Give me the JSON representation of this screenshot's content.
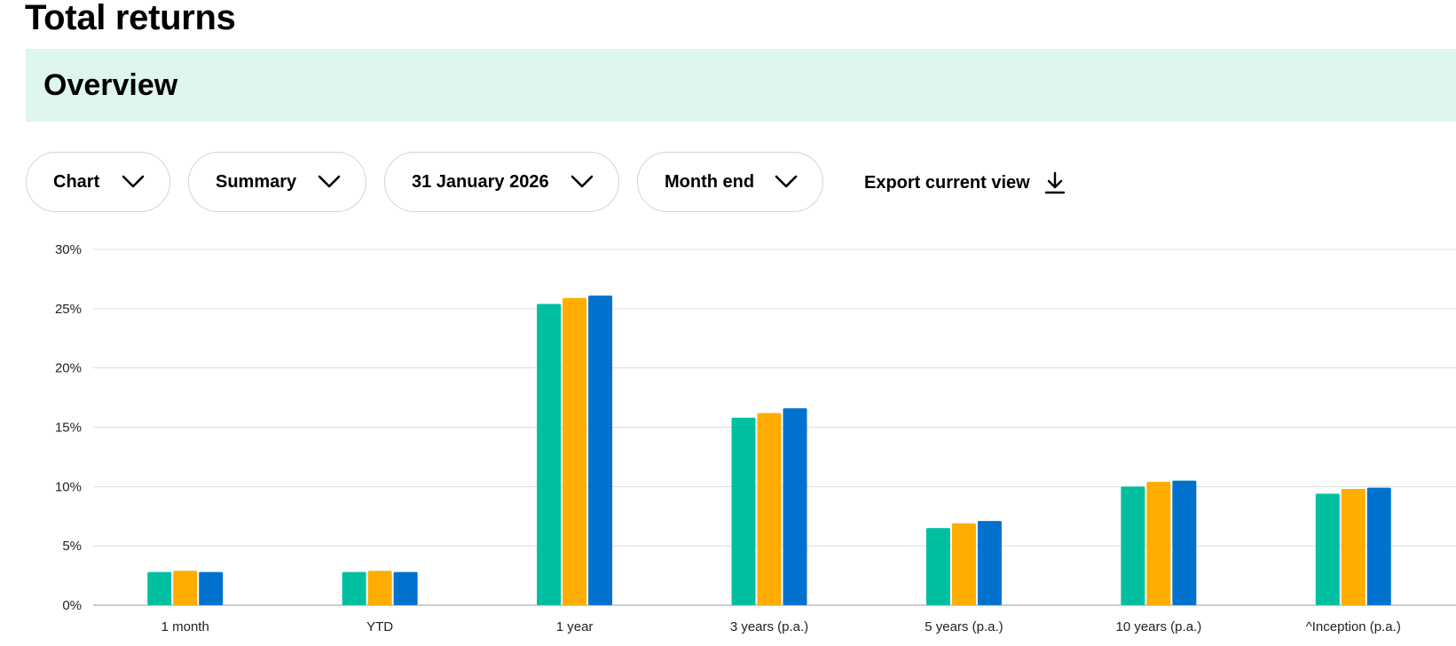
{
  "page": {
    "title": "Total returns"
  },
  "overview": {
    "title": "Overview",
    "background": "#dff5ef"
  },
  "filters": {
    "view": "Chart",
    "mode": "Summary",
    "date": "31 January 2026",
    "period": "Month end"
  },
  "export": {
    "label": "Export current view",
    "icon": "download-icon"
  },
  "chart_data": {
    "type": "bar",
    "categories": [
      "1 month",
      "YTD",
      "1 year",
      "3 years (p.a.)",
      "5 years (p.a.)",
      "10 years (p.a.)",
      "^Inception (p.a.)"
    ],
    "series": [
      {
        "color": "#00bfa0",
        "values": [
          2.8,
          2.8,
          25.4,
          15.8,
          6.5,
          10.0,
          9.4
        ]
      },
      {
        "color": "#ffad00",
        "values": [
          2.9,
          2.9,
          25.9,
          16.2,
          6.9,
          10.4,
          9.8
        ]
      },
      {
        "color": "#0072ce",
        "values": [
          2.8,
          2.8,
          26.1,
          16.6,
          7.1,
          10.5,
          9.9
        ]
      }
    ],
    "yticks": [
      "0%",
      "5%",
      "10%",
      "15%",
      "20%",
      "25%",
      "30%"
    ],
    "ylim": [
      0,
      30
    ],
    "grid": true
  }
}
